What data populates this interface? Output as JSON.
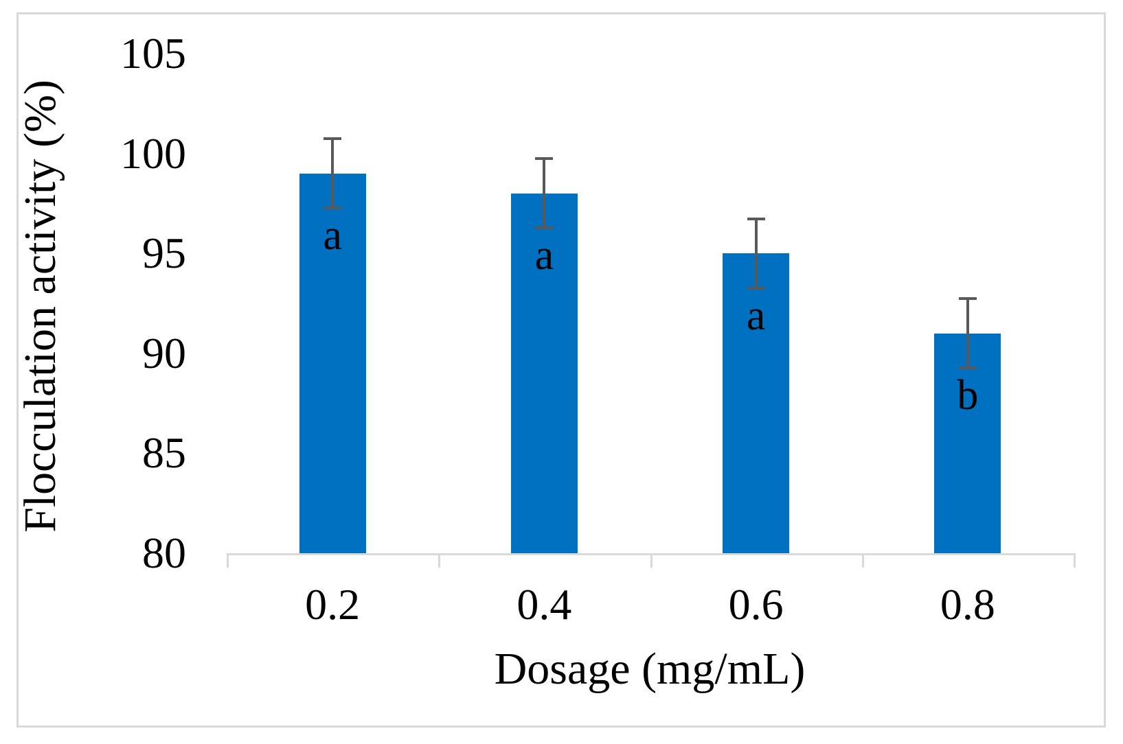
{
  "figure": {
    "background": "#ffffff",
    "border_color": "#d9d9d9"
  },
  "chart_data": {
    "type": "bar",
    "title": "",
    "xlabel": "Dosage (mg/mL)",
    "ylabel": "Flocculation activity (%)",
    "categories": [
      "0.2",
      "0.4",
      "0.6",
      "0.8"
    ],
    "values": [
      99,
      98,
      95,
      91
    ],
    "error_bars": [
      1.8,
      1.8,
      1.8,
      1.8
    ],
    "bar_letter_labels": [
      "a",
      "a",
      "a",
      "b"
    ],
    "ylim": [
      80,
      105
    ],
    "yticks": [
      80,
      85,
      90,
      95,
      100,
      105
    ],
    "grid": false,
    "legend": null,
    "bar_color": "#0070c0",
    "error_bar_color": "#595959",
    "axis_color": "#d9d9d9",
    "text_color": "#000000"
  }
}
